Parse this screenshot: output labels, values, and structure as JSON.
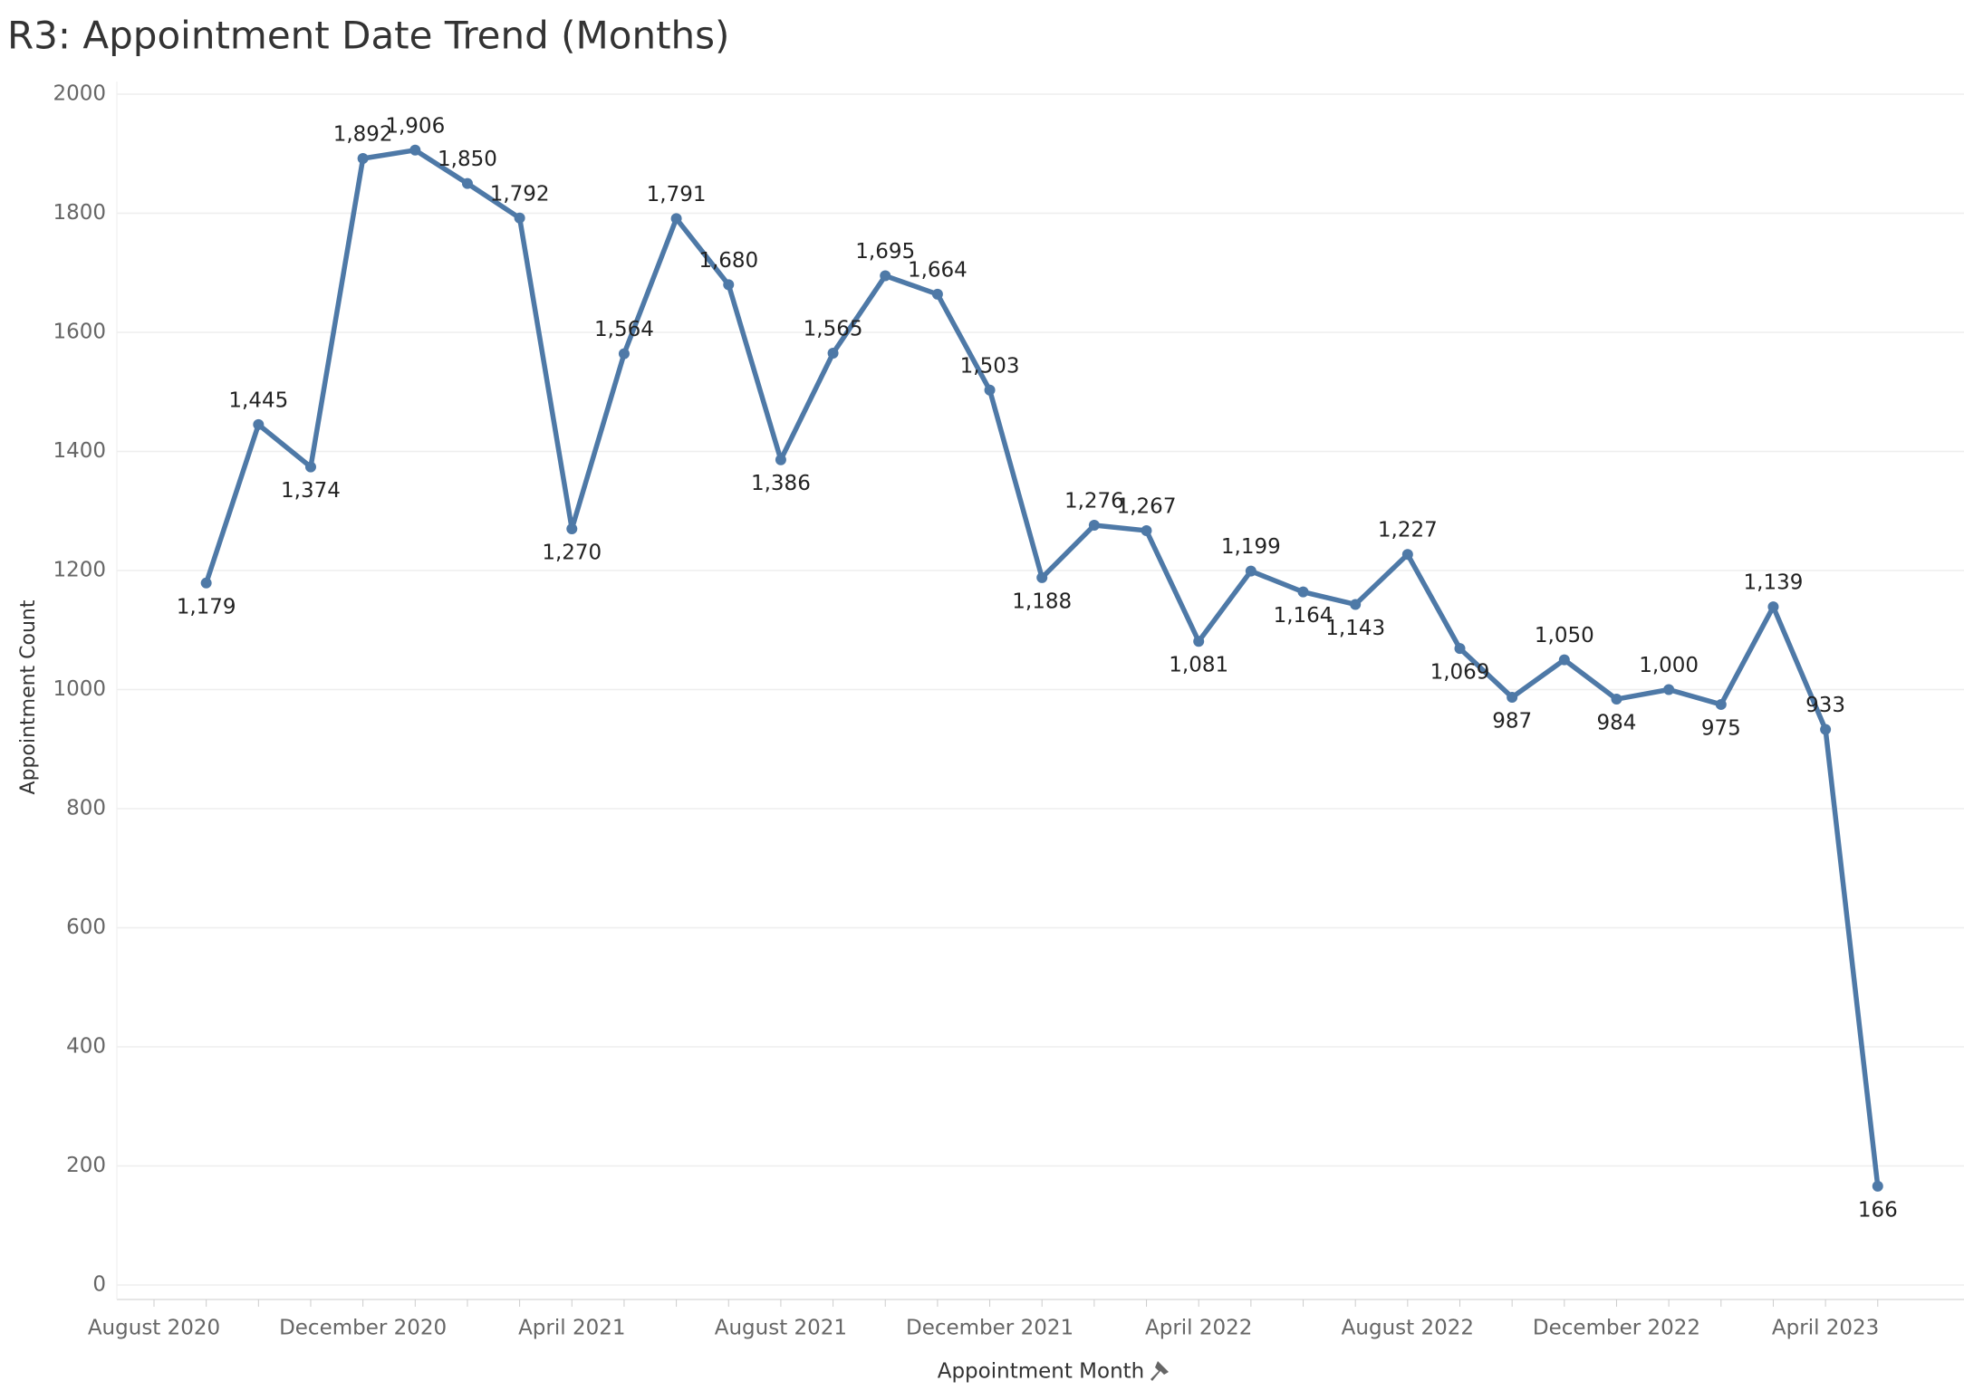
{
  "chart_data": {
    "type": "line",
    "title": "R3: Appointment Date Trend (Months)",
    "x_label": "Appointment Month",
    "y_label": "Appointment Count",
    "categories": [
      "August 2020",
      null,
      null,
      null,
      "December 2020",
      null,
      null,
      null,
      "April 2021",
      null,
      null,
      null,
      "August 2021",
      null,
      null,
      null,
      "December 2021",
      null,
      null,
      null,
      "April 2022",
      null,
      null,
      null,
      "August 2022",
      null,
      null,
      null,
      "December 2022",
      null,
      null,
      null,
      "April 2023",
      null
    ],
    "series": [
      {
        "name": "Appointment Count",
        "color": "#4e79a7",
        "values": [
          null,
          1179,
          1445,
          1374,
          1892,
          1906,
          1850,
          1792,
          1270,
          1564,
          1791,
          1680,
          1386,
          1565,
          1695,
          1664,
          1503,
          1188,
          1276,
          1267,
          1081,
          1199,
          1164,
          1143,
          1227,
          1069,
          987,
          1050,
          984,
          1000,
          975,
          1139,
          933,
          166
        ],
        "value_labels": [
          null,
          "1,179",
          "1,445",
          "1,374",
          "1,892",
          "1,906",
          "1,850",
          "1,792",
          "1,270",
          "1,564",
          "1,791",
          "1,680",
          "1,386",
          "1,565",
          "1,695",
          "1,664",
          "1,503",
          "1,188",
          "1,276",
          "1,267",
          "1,081",
          "1,199",
          "1,164",
          "1,143",
          "1,227",
          "1,069",
          "987",
          "1,050",
          "984",
          "1,000",
          "975",
          "1,139",
          "933",
          "166"
        ]
      }
    ],
    "ylim": [
      0,
      2000
    ],
    "yticks": [
      0,
      200,
      400,
      600,
      800,
      1000,
      1200,
      1400,
      1600,
      1800,
      2000
    ],
    "grid": true
  }
}
